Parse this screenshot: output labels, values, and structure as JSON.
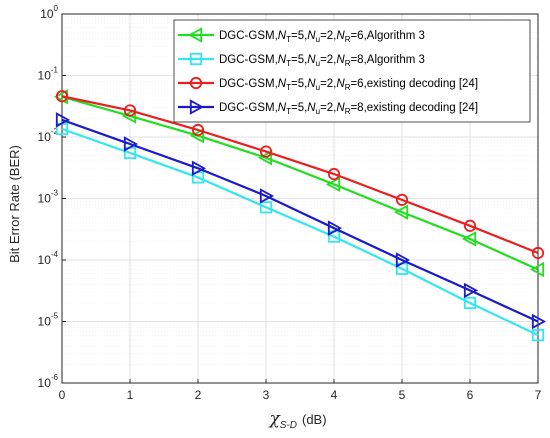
{
  "chart_data": {
    "type": "line",
    "title": "",
    "xlabel": {
      "symbol": "χ",
      "subscript": "S-D",
      "unit": "(dB)"
    },
    "ylabel": "Bit Error Rate (BER)",
    "xlim": [
      0,
      7
    ],
    "ylim": [
      1e-06,
      1
    ],
    "yscale": "log",
    "grid": true,
    "legend_position": "top-right",
    "x_ticks": [
      "0",
      "1",
      "2",
      "3",
      "4",
      "5",
      "6",
      "7"
    ],
    "y_ticks": [
      {
        "base": "10",
        "exp": "0",
        "value": 1
      },
      {
        "base": "10",
        "exp": "-1",
        "value": 0.1
      },
      {
        "base": "10",
        "exp": "-2",
        "value": 0.01
      },
      {
        "base": "10",
        "exp": "-3",
        "value": 0.001
      },
      {
        "base": "10",
        "exp": "-4",
        "value": 0.0001
      },
      {
        "base": "10",
        "exp": "-5",
        "value": 1e-05
      },
      {
        "base": "10",
        "exp": "-6",
        "value": 1e-06
      }
    ],
    "x": [
      0,
      1,
      2,
      3,
      4,
      5,
      6,
      7
    ],
    "series": [
      {
        "name": "DGC-GSM,N_T=5,N_u=2,N_R=6,Algorithm 3",
        "legend": {
          "pre": "DGC-GSM,",
          "nt": "5",
          "nu": "2",
          "nr": "6",
          "post": ",Algorithm 3"
        },
        "color": "#22dd22",
        "marker": "triangle-left",
        "values": [
          0.045,
          0.022,
          0.0105,
          0.0046,
          0.0017,
          0.0006,
          0.00022,
          7e-05
        ]
      },
      {
        "name": "DGC-GSM,N_T=5,N_u=2,N_R=8,Algorithm 3",
        "legend": {
          "pre": "DGC-GSM,",
          "nt": "5",
          "nu": "2",
          "nr": "8",
          "post": ",Algorithm 3"
        },
        "color": "#33e6f0",
        "marker": "square",
        "values": [
          0.0135,
          0.0055,
          0.0022,
          0.00072,
          0.00024,
          7.2e-05,
          2e-05,
          6e-06
        ]
      },
      {
        "name": "DGC-GSM,N_T=5,N_u=2,N_R=6,existing decoding [24]",
        "legend": {
          "pre": "DGC-GSM,",
          "nt": "5",
          "nu": "2",
          "nr": "6",
          "post": ",existing decoding [24]"
        },
        "color": "#e82020",
        "marker": "circle",
        "values": [
          0.046,
          0.027,
          0.013,
          0.0058,
          0.0025,
          0.00095,
          0.00036,
          0.00013
        ]
      },
      {
        "name": "DGC-GSM,N_T=5,N_u=2,N_R=8,existing decoding [24]",
        "legend": {
          "pre": "DGC-GSM,",
          "nt": "5",
          "nu": "2",
          "nr": "8",
          "post": ",existing decoding [24]"
        },
        "color": "#1a1acc",
        "marker": "triangle-right",
        "values": [
          0.019,
          0.0077,
          0.0031,
          0.0011,
          0.00033,
          0.0001,
          3.2e-05,
          1e-05
        ]
      }
    ]
  }
}
